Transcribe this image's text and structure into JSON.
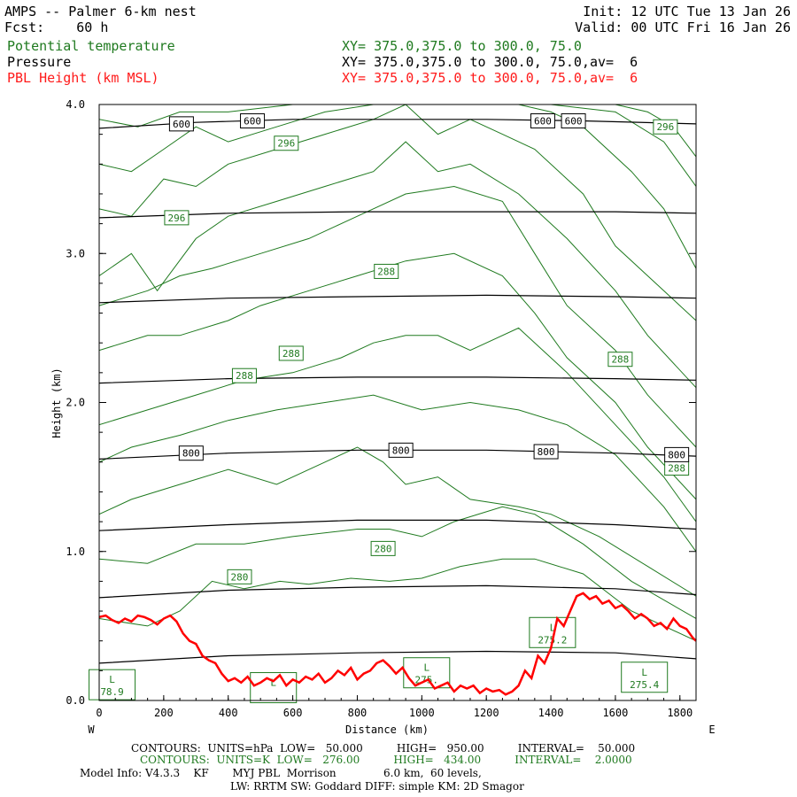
{
  "header": {
    "title": "AMPS -- Palmer 6-km nest",
    "fcst": "Fcst:    60 h",
    "init": "Init: 12 UTC Tue 13 Jan 26",
    "valid": "Valid: 00 UTC Fri 16 Jan 26",
    "field1_name": "Potential temperature",
    "field1_xy": "XY= 375.0,375.0 to 300.0, 75.0",
    "field2_name": "Pressure",
    "field2_xy": "XY= 375.0,375.0 to 300.0, 75.0,av=  6",
    "field3_name": "PBL Height (km MSL)",
    "field3_xy": "XY= 375.0,375.0 to 300.0, 75.0,av=  6"
  },
  "footer": {
    "contours_p": "CONTOURS:  UNITS=hPa  LOW=   50.000          HIGH=   950.00          INTERVAL=    50.000",
    "contours_k": "CONTOURS:  UNITS=K  LOW=   276.00          HIGH=   434.00          INTERVAL=    2.0000",
    "model_info": "Model Info: V4.3.3    KF       MYJ PBL  Morrison              6.0 km,  60 levels,",
    "model_info2": "LW: RRTM SW: Goddard DIFF: simple KM: 2D Smagor"
  },
  "colors": {
    "theta": "#1f7a1f",
    "pressure": "#000000",
    "pbl": "#ff0000"
  },
  "chart_data": {
    "type": "line",
    "xlabel": "Distance (km)",
    "ylabel": "Height (km)",
    "xlim": [
      0,
      1850
    ],
    "ylim": [
      0,
      4.0
    ],
    "x_ticks": [
      "0",
      "200",
      "400",
      "600",
      "800",
      "1000",
      "1200",
      "1400",
      "1600",
      "1800"
    ],
    "y_ticks": [
      "0.0",
      "1.0",
      "2.0",
      "3.0",
      "4.0"
    ],
    "left_end_label": "W",
    "right_end_label": "E",
    "pressure_contours": [
      {
        "label": "600",
        "x": [
          0,
          300,
          600,
          900,
          1200,
          1500,
          1850
        ],
        "y": [
          3.84,
          3.88,
          3.9,
          3.9,
          3.9,
          3.89,
          3.87
        ]
      },
      {
        "label": "",
        "x": [
          0,
          400,
          800,
          1200,
          1600,
          1850
        ],
        "y": [
          3.24,
          3.27,
          3.28,
          3.28,
          3.28,
          3.27
        ]
      },
      {
        "label": "",
        "x": [
          0,
          400,
          800,
          1200,
          1600,
          1850
        ],
        "y": [
          2.67,
          2.7,
          2.71,
          2.72,
          2.71,
          2.7
        ]
      },
      {
        "label": "",
        "x": [
          0,
          400,
          800,
          1200,
          1600,
          1850
        ],
        "y": [
          2.13,
          2.16,
          2.17,
          2.17,
          2.16,
          2.15
        ]
      },
      {
        "label": "800",
        "x": [
          0,
          400,
          800,
          1200,
          1600,
          1850
        ],
        "y": [
          1.62,
          1.66,
          1.68,
          1.68,
          1.66,
          1.64
        ]
      },
      {
        "label": "",
        "x": [
          0,
          400,
          800,
          1200,
          1600,
          1850
        ],
        "y": [
          1.14,
          1.18,
          1.21,
          1.21,
          1.18,
          1.15
        ]
      },
      {
        "label": "",
        "x": [
          0,
          400,
          800,
          1200,
          1600,
          1850
        ],
        "y": [
          0.69,
          0.74,
          0.76,
          0.77,
          0.75,
          0.71
        ]
      },
      {
        "label": "",
        "x": [
          0,
          400,
          800,
          1200,
          1600,
          1850
        ],
        "y": [
          0.25,
          0.3,
          0.32,
          0.33,
          0.32,
          0.28
        ]
      }
    ],
    "pressure_labels": [
      {
        "text": "600",
        "x": 255,
        "y": 3.87
      },
      {
        "text": "600",
        "x": 475,
        "y": 3.89
      },
      {
        "text": "600",
        "x": 1375,
        "y": 3.89
      },
      {
        "text": "600",
        "x": 1470,
        "y": 3.89
      },
      {
        "text": "800",
        "x": 285,
        "y": 1.66
      },
      {
        "text": "800",
        "x": 935,
        "y": 1.68
      },
      {
        "text": "800",
        "x": 1385,
        "y": 1.67
      },
      {
        "text": "800",
        "x": 1790,
        "y": 1.65
      }
    ],
    "theta_contours": [
      {
        "x": [
          0,
          150,
          250,
          350,
          450,
          560,
          650,
          780,
          900,
          1000,
          1120,
          1250,
          1350,
          1500,
          1650,
          1850
        ],
        "y": [
          0.55,
          0.5,
          0.6,
          0.8,
          0.75,
          0.8,
          0.78,
          0.82,
          0.8,
          0.82,
          0.9,
          0.95,
          0.95,
          0.85,
          0.6,
          0.4
        ]
      },
      {
        "x": [
          0,
          150,
          300,
          450,
          600,
          800,
          900,
          1000,
          1100,
          1250,
          1350,
          1500,
          1650,
          1850
        ],
        "y": [
          0.95,
          0.92,
          1.05,
          1.05,
          1.1,
          1.15,
          1.15,
          1.1,
          1.2,
          1.3,
          1.25,
          1.05,
          0.8,
          0.55
        ]
      },
      {
        "x": [
          0,
          100,
          250,
          400,
          550,
          700,
          800,
          880,
          950,
          1050,
          1150,
          1300,
          1400,
          1550,
          1700,
          1850
        ],
        "y": [
          1.25,
          1.35,
          1.45,
          1.55,
          1.45,
          1.6,
          1.7,
          1.6,
          1.45,
          1.5,
          1.35,
          1.3,
          1.25,
          1.1,
          0.9,
          0.7
        ]
      },
      {
        "x": [
          0,
          100,
          250,
          400,
          550,
          700,
          850,
          1000,
          1150,
          1300,
          1450,
          1600,
          1750,
          1850
        ],
        "y": [
          1.6,
          1.7,
          1.78,
          1.88,
          1.95,
          2.0,
          2.05,
          1.95,
          2.0,
          1.95,
          1.85,
          1.65,
          1.3,
          1.0
        ]
      },
      {
        "x": [
          0,
          150,
          300,
          450,
          600,
          750,
          850,
          950,
          1050,
          1150,
          1300,
          1450,
          1600,
          1750,
          1850
        ],
        "y": [
          1.85,
          1.95,
          2.05,
          2.15,
          2.2,
          2.3,
          2.4,
          2.45,
          2.45,
          2.35,
          2.5,
          2.2,
          1.85,
          1.5,
          1.2
        ]
      },
      {
        "x": [
          0,
          150,
          250,
          400,
          500,
          650,
          800,
          950,
          1100,
          1250,
          1350,
          1450,
          1600,
          1700,
          1850
        ],
        "y": [
          2.35,
          2.45,
          2.45,
          2.55,
          2.65,
          2.75,
          2.85,
          2.95,
          3.0,
          2.85,
          2.6,
          2.3,
          2.0,
          1.7,
          1.35
        ]
      },
      {
        "x": [
          0,
          150,
          250,
          350,
          500,
          650,
          800,
          950,
          1100,
          1250,
          1350,
          1450,
          1600,
          1700,
          1850
        ],
        "y": [
          2.65,
          2.75,
          2.85,
          2.9,
          3.0,
          3.1,
          3.25,
          3.4,
          3.45,
          3.35,
          3.0,
          2.65,
          2.35,
          2.05,
          1.7
        ]
      },
      {
        "x": [
          0,
          100,
          180,
          300,
          400,
          550,
          700,
          850,
          950,
          1050,
          1150,
          1300,
          1450,
          1600,
          1700,
          1850
        ],
        "y": [
          2.85,
          3.0,
          2.75,
          3.1,
          3.25,
          3.35,
          3.45,
          3.55,
          3.75,
          3.55,
          3.6,
          3.4,
          3.1,
          2.75,
          2.45,
          2.1
        ]
      },
      {
        "x": [
          0,
          100,
          200,
          300,
          400,
          550,
          700,
          850,
          950,
          1050,
          1150,
          1250,
          1350,
          1500,
          1600,
          1700,
          1850
        ],
        "y": [
          3.3,
          3.25,
          3.5,
          3.45,
          3.6,
          3.7,
          3.8,
          3.9,
          4.0,
          3.8,
          3.9,
          3.8,
          3.7,
          3.4,
          3.05,
          2.85,
          2.55
        ]
      },
      {
        "x": [
          0,
          100,
          200,
          300,
          400,
          550,
          700,
          850,
          1000,
          1100,
          1200,
          1300,
          1400,
          1500,
          1650,
          1750,
          1850
        ],
        "y": [
          3.6,
          3.55,
          3.7,
          3.85,
          3.75,
          3.85,
          3.95,
          4.0,
          4.0,
          4.0,
          4.0,
          4.0,
          3.95,
          3.85,
          3.55,
          3.3,
          2.9
        ]
      },
      {
        "x": [
          0,
          120,
          250,
          400,
          600,
          800,
          1000,
          1200,
          1400,
          1600,
          1750,
          1850
        ],
        "y": [
          3.9,
          3.85,
          3.95,
          3.95,
          4.0,
          4.0,
          4.0,
          4.0,
          4.0,
          3.95,
          3.75,
          3.45
        ]
      },
      {
        "x": [
          1600,
          1700,
          1780,
          1850
        ],
        "y": [
          4.0,
          3.95,
          3.85,
          3.65
        ]
      }
    ],
    "theta_labels": [
      {
        "text": "296",
        "x": 580,
        "y": 3.74
      },
      {
        "text": "296",
        "x": 240,
        "y": 3.24
      },
      {
        "text": "288",
        "x": 890,
        "y": 2.88
      },
      {
        "text": "288",
        "x": 595,
        "y": 2.33
      },
      {
        "text": "288",
        "x": 450,
        "y": 2.18
      },
      {
        "text": "288",
        "x": 1615,
        "y": 2.29
      },
      {
        "text": "280",
        "x": 880,
        "y": 1.02
      },
      {
        "text": "280",
        "x": 435,
        "y": 0.83
      },
      {
        "text": "296",
        "x": 1755,
        "y": 3.85
      },
      {
        "text": "288",
        "x": 1790,
        "y": 1.56
      }
    ],
    "lows": [
      {
        "text": "275.2",
        "x": 1405,
        "y": 0.45
      },
      {
        "text": "275.4",
        "x": 1690,
        "y": 0.15
      },
      {
        "text": "275.",
        "x": 1015,
        "y": 0.18
      },
      {
        "text": "",
        "x": 540,
        "y": 0.08
      },
      {
        "text": "78.9",
        "x": 40,
        "y": 0.1
      }
    ],
    "pbl_height": {
      "name": "PBL Height (km MSL)",
      "x": [
        0,
        20,
        40,
        60,
        80,
        100,
        120,
        140,
        160,
        180,
        200,
        220,
        240,
        260,
        280,
        300,
        320,
        340,
        360,
        380,
        400,
        420,
        440,
        460,
        480,
        500,
        520,
        540,
        560,
        580,
        600,
        620,
        640,
        660,
        680,
        700,
        720,
        740,
        760,
        780,
        800,
        820,
        840,
        860,
        880,
        900,
        920,
        940,
        960,
        980,
        1000,
        1020,
        1040,
        1060,
        1080,
        1100,
        1120,
        1140,
        1160,
        1180,
        1200,
        1220,
        1240,
        1260,
        1280,
        1300,
        1320,
        1340,
        1360,
        1380,
        1400,
        1420,
        1440,
        1460,
        1480,
        1500,
        1520,
        1540,
        1560,
        1580,
        1600,
        1620,
        1640,
        1660,
        1680,
        1700,
        1720,
        1740,
        1760,
        1780,
        1800,
        1820,
        1840,
        1850
      ],
      "y": [
        0.56,
        0.57,
        0.54,
        0.52,
        0.55,
        0.53,
        0.57,
        0.56,
        0.54,
        0.51,
        0.55,
        0.57,
        0.53,
        0.45,
        0.4,
        0.38,
        0.3,
        0.27,
        0.25,
        0.18,
        0.13,
        0.15,
        0.12,
        0.16,
        0.1,
        0.12,
        0.15,
        0.13,
        0.17,
        0.1,
        0.14,
        0.12,
        0.16,
        0.14,
        0.18,
        0.12,
        0.15,
        0.2,
        0.17,
        0.22,
        0.14,
        0.18,
        0.2,
        0.25,
        0.27,
        0.23,
        0.18,
        0.22,
        0.15,
        0.1,
        0.12,
        0.14,
        0.08,
        0.1,
        0.12,
        0.06,
        0.1,
        0.08,
        0.1,
        0.05,
        0.08,
        0.06,
        0.07,
        0.04,
        0.06,
        0.1,
        0.2,
        0.15,
        0.3,
        0.25,
        0.35,
        0.55,
        0.5,
        0.6,
        0.7,
        0.72,
        0.68,
        0.7,
        0.65,
        0.67,
        0.62,
        0.64,
        0.6,
        0.55,
        0.58,
        0.55,
        0.5,
        0.52,
        0.48,
        0.55,
        0.5,
        0.48,
        0.42,
        0.4
      ]
    }
  }
}
